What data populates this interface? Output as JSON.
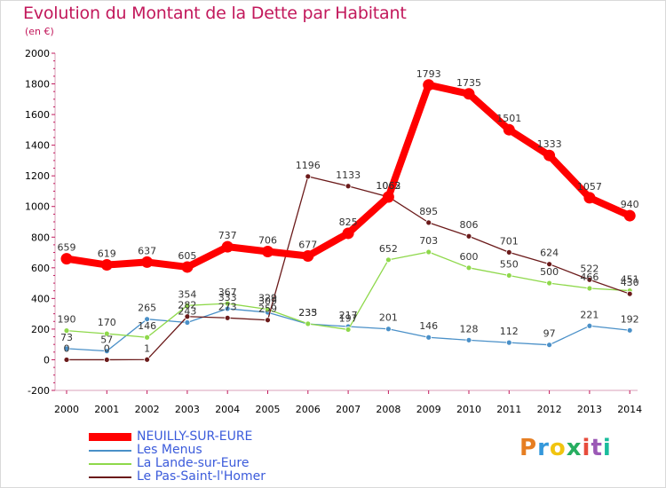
{
  "header": {
    "title": "Evolution du Montant de la Dette par Habitant",
    "unit": "(en €)"
  },
  "logo": {
    "text": "Proxiti",
    "colors": [
      "#e67e22",
      "#3498db",
      "#f1c40f",
      "#27ae60",
      "#e74c3c",
      "#9b59b6",
      "#1abc9c"
    ]
  },
  "chart_data": {
    "type": "line",
    "title": "Evolution du Montant de la Dette par Habitant",
    "ylabel": "(en €)",
    "xlabel": "",
    "x": [
      "2000",
      "2001",
      "2002",
      "2003",
      "2004",
      "2005",
      "2006",
      "2007",
      "2008",
      "2009",
      "2010",
      "2011",
      "2012",
      "2013",
      "2014"
    ],
    "ylim": [
      -200,
      2000
    ],
    "yticks": [
      -200,
      0,
      200,
      400,
      600,
      800,
      1000,
      1200,
      1400,
      1600,
      1800,
      2000
    ],
    "grid": false,
    "legend": "bottom-left",
    "series": [
      {
        "name": "NEUILLY-SUR-EURE",
        "color": "#ff0000",
        "values": [
          659,
          619,
          637,
          605,
          737,
          706,
          677,
          825,
          1062,
          1793,
          1735,
          1501,
          1333,
          1057,
          940
        ]
      },
      {
        "name": "Les Menus",
        "color": "#4a90c8",
        "values": [
          73,
          57,
          265,
          243,
          333,
          309,
          233,
          217,
          201,
          146,
          128,
          112,
          97,
          221,
          192
        ]
      },
      {
        "name": "La Lande-sur-Eure",
        "color": "#8ed84a",
        "values": [
          190,
          170,
          146,
          354,
          367,
          329,
          235,
          197,
          652,
          703,
          600,
          550,
          500,
          466,
          451
        ]
      },
      {
        "name": "Le Pas-Saint-l'Homer",
        "color": "#6b1a1a",
        "values": [
          0,
          0,
          1,
          282,
          273,
          259,
          1196,
          1133,
          1063,
          895,
          806,
          701,
          624,
          522,
          430
        ]
      }
    ]
  }
}
